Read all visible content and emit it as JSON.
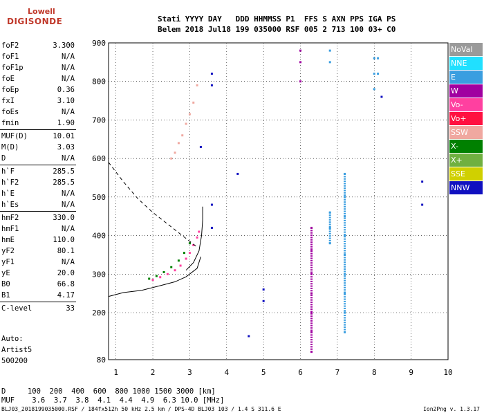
{
  "logo": {
    "line1": "Lowell",
    "line2": "DIGISONDE"
  },
  "header": {
    "line1": "Stati YYYY DAY   DDD HHMMSS P1  FFS S AXN PPS IGA PS",
    "line2": "Belem 2018 Jul18 199 035000 RSF 005 2 713 100 03+ C0"
  },
  "params": [
    {
      "k": "foF2",
      "v": "3.300"
    },
    {
      "k": "foF1",
      "v": "N/A"
    },
    {
      "k": "foF1p",
      "v": "N/A"
    },
    {
      "k": "foE",
      "v": "N/A"
    },
    {
      "k": "foEp",
      "v": "0.36"
    },
    {
      "k": "fxI",
      "v": "3.10"
    },
    {
      "k": "foEs",
      "v": "N/A"
    },
    {
      "k": "fmin",
      "v": "1.90"
    },
    {
      "k": "MUF(D)",
      "v": "10.01"
    },
    {
      "k": "M(D)",
      "v": "3.03"
    },
    {
      "k": "D",
      "v": "N/A"
    },
    {
      "k": "h`F",
      "v": "285.5"
    },
    {
      "k": "h`F2",
      "v": "285.5"
    },
    {
      "k": "h`E",
      "v": "N/A"
    },
    {
      "k": "h`Es",
      "v": "N/A"
    },
    {
      "k": "hmF2",
      "v": "330.0"
    },
    {
      "k": "hmF1",
      "v": "N/A"
    },
    {
      "k": "hmE",
      "v": "110.0"
    },
    {
      "k": "yF2",
      "v": "80.1"
    },
    {
      "k": "yF1",
      "v": "N/A"
    },
    {
      "k": "yE",
      "v": "20.0"
    },
    {
      "k": "B0",
      "v": "66.8"
    },
    {
      "k": "B1",
      "v": "4.17"
    },
    {
      "k": "C-level",
      "v": "33"
    }
  ],
  "auto": {
    "l1": "Auto:",
    "l2": "Artist5",
    "l3": "500200"
  },
  "legend": [
    {
      "label": "NoVal",
      "color": "#9a9a9a"
    },
    {
      "label": "NNE",
      "color": "#20e0ff"
    },
    {
      "label": "E",
      "color": "#3a9ee0"
    },
    {
      "label": "W",
      "color": "#a000a0"
    },
    {
      "label": "Vo-",
      "color": "#ff40a0"
    },
    {
      "label": "Vo+",
      "color": "#ff1040"
    },
    {
      "label": "SSW",
      "color": "#f0a8a0"
    },
    {
      "label": "X-",
      "color": "#008000"
    },
    {
      "label": "X+",
      "color": "#70b040"
    },
    {
      "label": "SSE",
      "color": "#d0d000"
    },
    {
      "label": "NNW",
      "color": "#1010c0"
    }
  ],
  "footer": {
    "l1": "D     100  200  400  600  800 1000 1500 3000 [km]",
    "l2": "MUF    3.6  3.7  3.8  4.1  4.4  4.9  6.3 10.0 [MHz]",
    "file": "BLJ03_2018199035000.RSF / 184fx512h 50 kHz 2.5 km / DPS-4D BLJ03 103 / 1.4 S 311.6 E",
    "version": "Ion2Png v. 1.3.17"
  },
  "chart_data": {
    "type": "scatter",
    "xlim": [
      0.8,
      10
    ],
    "ylim": [
      80,
      900
    ],
    "x_ticks": [
      1,
      2,
      3,
      4,
      5,
      6,
      7,
      8,
      9,
      10
    ],
    "y_ticks": [
      80,
      200,
      300,
      400,
      500,
      600,
      700,
      800,
      900
    ],
    "grid": true,
    "traces": [
      {
        "name": "F2 O-trace",
        "color": "#ff40a0",
        "points": [
          [
            2.0,
            285
          ],
          [
            2.2,
            292
          ],
          [
            2.4,
            300
          ],
          [
            2.6,
            310
          ],
          [
            2.75,
            322
          ],
          [
            2.9,
            340
          ],
          [
            3.0,
            355
          ],
          [
            3.1,
            375
          ],
          [
            3.2,
            395
          ],
          [
            3.25,
            410
          ]
        ]
      },
      {
        "name": "F2 X-trace",
        "color": "#008000",
        "points": [
          [
            1.9,
            288
          ],
          [
            2.1,
            295
          ],
          [
            2.3,
            305
          ],
          [
            2.5,
            318
          ],
          [
            2.7,
            335
          ],
          [
            2.85,
            355
          ],
          [
            3.0,
            380
          ]
        ]
      },
      {
        "name": "multi-hop",
        "color": "#f0a8a0",
        "points": [
          [
            2.5,
            600
          ],
          [
            2.6,
            615
          ],
          [
            2.7,
            640
          ],
          [
            2.8,
            660
          ],
          [
            2.9,
            690
          ],
          [
            3.0,
            715
          ],
          [
            3.1,
            745
          ],
          [
            3.2,
            790
          ]
        ]
      },
      {
        "name": "W column 6",
        "color": "#a000a0",
        "points": [
          [
            6.0,
            850
          ],
          [
            6.0,
            880
          ],
          [
            6.0,
            800
          ],
          [
            6.3,
            420
          ],
          [
            6.3,
            360
          ],
          [
            6.3,
            300
          ],
          [
            6.3,
            250
          ],
          [
            6.3,
            200
          ],
          [
            6.3,
            150
          ],
          [
            6.3,
            100
          ]
        ]
      },
      {
        "name": "E column 7",
        "color": "#3a9ee0",
        "points": [
          [
            6.8,
            380
          ],
          [
            6.8,
            420
          ],
          [
            6.8,
            460
          ],
          [
            6.8,
            880
          ],
          [
            6.8,
            850
          ],
          [
            7.2,
            560
          ],
          [
            7.2,
            500
          ],
          [
            7.2,
            450
          ],
          [
            7.2,
            400
          ],
          [
            7.2,
            350
          ],
          [
            7.2,
            300
          ],
          [
            7.2,
            250
          ],
          [
            7.2,
            200
          ],
          [
            7.2,
            150
          ],
          [
            8.0,
            860
          ],
          [
            8.0,
            820
          ],
          [
            8.0,
            780
          ],
          [
            8.1,
            820
          ],
          [
            8.1,
            860
          ]
        ]
      },
      {
        "name": "NNW scattered",
        "color": "#1010c0",
        "points": [
          [
            3.6,
            820
          ],
          [
            3.6,
            790
          ],
          [
            3.3,
            630
          ],
          [
            3.6,
            480
          ],
          [
            3.6,
            420
          ],
          [
            4.3,
            560
          ],
          [
            5.0,
            260
          ],
          [
            5.0,
            230
          ],
          [
            4.6,
            140
          ],
          [
            8.2,
            760
          ],
          [
            9.3,
            540
          ],
          [
            9.3,
            480
          ]
        ]
      }
    ],
    "curves": [
      {
        "name": "profile-lower",
        "style": "solid",
        "points": [
          [
            0.8,
            242
          ],
          [
            1.2,
            252
          ],
          [
            1.7,
            258
          ],
          [
            2.2,
            270
          ],
          [
            2.6,
            280
          ],
          [
            2.9,
            293
          ],
          [
            3.2,
            315
          ],
          [
            3.3,
            345
          ]
        ]
      },
      {
        "name": "profile-upper",
        "style": "solid",
        "points": [
          [
            2.9,
            310
          ],
          [
            3.1,
            330
          ],
          [
            3.25,
            360
          ],
          [
            3.32,
            400
          ],
          [
            3.35,
            440
          ],
          [
            3.35,
            475
          ]
        ]
      },
      {
        "name": "MUF-dashed",
        "style": "dashed",
        "points": [
          [
            0.8,
            590
          ],
          [
            1.2,
            540
          ],
          [
            1.6,
            495
          ],
          [
            2.0,
            460
          ],
          [
            2.4,
            430
          ],
          [
            2.8,
            400
          ],
          [
            3.0,
            385
          ],
          [
            3.2,
            370
          ]
        ]
      }
    ]
  }
}
